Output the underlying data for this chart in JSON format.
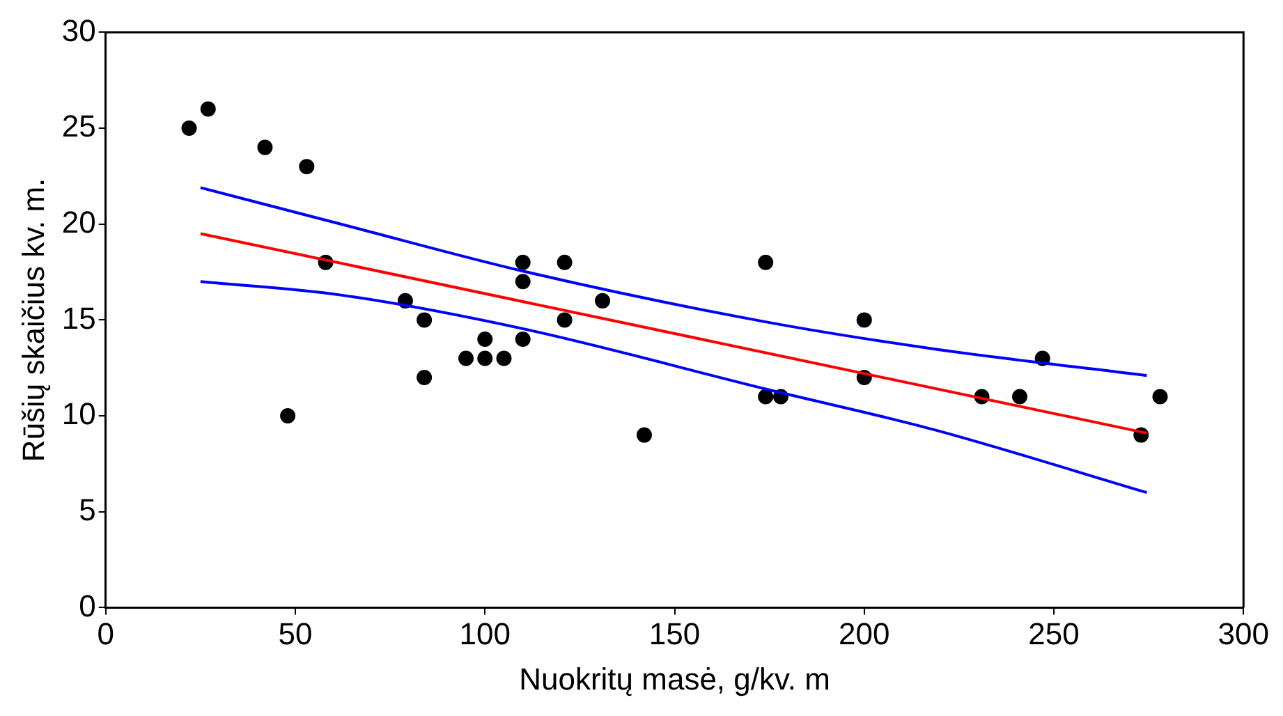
{
  "chart_data": {
    "type": "scatter",
    "xlabel": "Nuokritų masė, g/kv. m",
    "ylabel": "Rūšių skaičius kv. m.",
    "xlim": [
      0,
      300
    ],
    "xticks": [
      0,
      50,
      100,
      150,
      200,
      250,
      300
    ],
    "ylim": [
      0,
      30
    ],
    "yticks": [
      0,
      5,
      10,
      15,
      20,
      25,
      30
    ],
    "grid": false,
    "legend": false,
    "series": [
      {
        "marker": "circle",
        "color": "#000000",
        "x": [
          22,
          27,
          42,
          53,
          58,
          48,
          79,
          84,
          84,
          95,
          100,
          100,
          105,
          110,
          110,
          110,
          121,
          121,
          131,
          142,
          174,
          174,
          178,
          200,
          200,
          231,
          241,
          247,
          273,
          278
        ],
        "values": [
          25,
          26,
          24,
          23,
          18,
          10,
          16,
          15,
          12,
          13,
          14,
          13,
          13,
          14,
          17,
          18,
          18,
          15,
          16,
          9,
          18,
          11,
          11,
          15,
          12,
          11,
          11,
          13,
          9,
          11
        ]
      },
      {
        "type": "line",
        "marker": "none",
        "color": "#ff0000",
        "x": [
          25,
          274.5
        ],
        "values": [
          19.5,
          9.1
        ]
      },
      {
        "type": "line",
        "marker": "none",
        "color": "#0000ff",
        "x": [
          25,
          62,
          111,
          174,
          218,
          274.5
        ],
        "values": [
          21.9,
          20.0,
          17.5,
          14.9,
          13.5,
          12.1
        ]
      },
      {
        "type": "line",
        "marker": "none",
        "color": "#0000ff",
        "x": [
          25,
          62,
          111,
          174,
          218,
          274.5
        ],
        "values": [
          17.0,
          16.3,
          14.5,
          11.4,
          9.3,
          6.0
        ]
      }
    ]
  }
}
